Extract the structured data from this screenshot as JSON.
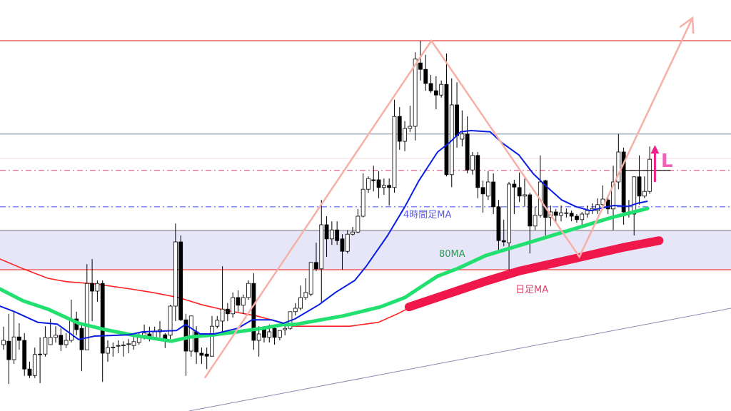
{
  "chart_data": {
    "type": "candlestick",
    "title": "",
    "xlabel": "",
    "ylabel": "",
    "xlim": [
      -0.685,
      139.6
    ],
    "ylim": [
      4,
      100
    ],
    "grid": false,
    "axes_visible": false,
    "colors": {
      "bull_body": "#ffffff",
      "bear_body": "#000000",
      "wick": "#000000",
      "ma_4h": "#0a1ee0",
      "ma_80": "#22e070",
      "ma_red": "#ff2020",
      "ma_daily": "#f0184a",
      "zigzag": "#f5b0a8",
      "trendline": "#8a8ab0",
      "zone_fill": "#e6e6f8",
      "arrow": "#f0208a"
    },
    "candles_ohlc": [
      [
        19.5,
        23.7,
        18.3,
        20.5
      ],
      [
        20.3,
        26.7,
        10.3,
        16
      ],
      [
        16,
        27.2,
        15,
        21.3
      ],
      [
        21.3,
        24.5,
        18.3,
        20.5
      ],
      [
        20.5,
        22.2,
        12.2,
        13.8
      ],
      [
        13.8,
        15.5,
        11.7,
        12.3
      ],
      [
        12.3,
        18.8,
        11.7,
        17.2
      ],
      [
        17.3,
        21.2,
        10.5,
        17.2
      ],
      [
        17.3,
        23.8,
        16.7,
        21.2
      ],
      [
        19.5,
        25.5,
        19.5,
        21.2
      ],
      [
        21.2,
        23.8,
        20,
        21.7
      ],
      [
        21.7,
        23.3,
        18,
        19.5
      ],
      [
        19.5,
        22.2,
        18.7,
        20.5
      ],
      [
        20.5,
        30,
        20,
        25.3
      ],
      [
        25.5,
        27.2,
        21.7,
        23
      ],
      [
        23.3,
        24.5,
        13.3,
        18.3
      ],
      [
        18.3,
        38.3,
        18.3,
        33.8
      ],
      [
        33.8,
        39.5,
        25,
        32
      ],
      [
        32,
        34.5,
        29.5,
        33.8
      ],
      [
        33.8,
        34.5,
        10.8,
        17.5
      ],
      [
        17.5,
        20.5,
        15.5,
        18.8
      ],
      [
        18.8,
        20,
        16.7,
        18.9
      ],
      [
        19.2,
        20.5,
        17.5,
        19.3
      ],
      [
        19.3,
        20.3,
        16.7,
        19.4
      ],
      [
        19.6,
        20.8,
        17.5,
        19.7
      ],
      [
        19.3,
        21.7,
        18.3,
        20.2
      ],
      [
        20,
        22.2,
        19.5,
        21.2
      ],
      [
        21.2,
        24.2,
        20.7,
        22.2
      ],
      [
        22,
        23.7,
        20.3,
        21.2
      ],
      [
        21.2,
        23.7,
        20.7,
        22.5
      ],
      [
        22.5,
        25,
        21.2,
        23
      ],
      [
        21.8,
        22.2,
        18.7,
        20.5
      ],
      [
        21.7,
        28.8,
        20.8,
        28.5
      ],
      [
        28.5,
        47.8,
        25,
        43.5
      ],
      [
        43.5,
        45,
        25,
        25.3
      ],
      [
        25.3,
        26.7,
        12.2,
        18
      ],
      [
        18,
        26.2,
        16.7,
        26.2
      ],
      [
        22.5,
        23.8,
        15,
        17.8
      ],
      [
        17.5,
        18.8,
        15,
        17
      ],
      [
        17.3,
        18.8,
        13.8,
        16.8
      ],
      [
        16.8,
        26.2,
        16.7,
        23.8
      ],
      [
        23.8,
        26.2,
        23.3,
        25.2
      ],
      [
        25,
        37.8,
        22.2,
        27.8
      ],
      [
        27.8,
        29.2,
        25,
        26.7
      ],
      [
        26.7,
        31.7,
        25.8,
        30.5
      ],
      [
        30.5,
        32.2,
        27.2,
        28.7
      ],
      [
        28.7,
        31.2,
        26.7,
        30.5
      ],
      [
        30.5,
        34.5,
        30,
        33.8
      ],
      [
        33.8,
        36.2,
        18.3,
        20.5
      ],
      [
        20.5,
        23.8,
        16.7,
        22
      ],
      [
        23.3,
        23.8,
        20,
        21.2
      ],
      [
        21.2,
        24.2,
        20,
        22.5
      ],
      [
        23.3,
        24.2,
        19.5,
        21.2
      ],
      [
        21.2,
        22.8,
        20.5,
        22.8
      ],
      [
        23,
        24.2,
        21.7,
        23.3
      ],
      [
        23.3,
        27.2,
        23,
        27.2
      ],
      [
        27.2,
        29.2,
        26.3,
        28
      ],
      [
        28,
        33.3,
        27.5,
        30.5
      ],
      [
        30.5,
        35,
        30,
        31.7
      ],
      [
        31.3,
        38.7,
        30.8,
        38.7
      ],
      [
        38.7,
        43.3,
        36.7,
        37.2
      ],
      [
        37.2,
        53.3,
        29.5,
        47.5
      ],
      [
        47.5,
        49.5,
        40,
        44.2
      ],
      [
        44.2,
        48.3,
        42.8,
        46.3
      ],
      [
        46.3,
        48.3,
        42.8,
        43.8
      ],
      [
        44.2,
        45.3,
        37,
        41.3
      ],
      [
        41.3,
        46.2,
        40.8,
        45.3
      ],
      [
        45.3,
        47,
        45,
        45.8
      ],
      [
        45.8,
        51.2,
        45.5,
        49.5
      ],
      [
        49.5,
        59.5,
        49.2,
        55.8
      ],
      [
        55.8,
        58.8,
        55,
        58.3
      ],
      [
        58,
        61.3,
        55.3,
        57.8
      ],
      [
        58,
        60,
        53.7,
        56.2
      ],
      [
        56.2,
        58.3,
        54.5,
        56.7
      ],
      [
        56.7,
        58.3,
        52,
        56.2
      ],
      [
        56.2,
        76.7,
        55,
        72.8
      ],
      [
        72.8,
        75,
        65,
        67
      ],
      [
        67,
        71.7,
        64.7,
        70
      ],
      [
        70,
        75.3,
        69.2,
        70.5
      ],
      [
        70.5,
        87.8,
        67.2,
        86.2
      ],
      [
        85.3,
        90.5,
        81.2,
        83.8
      ],
      [
        83.8,
        87.2,
        78.8,
        80.5
      ],
      [
        80.5,
        82.5,
        78.3,
        78.8
      ],
      [
        78.8,
        82.2,
        74.5,
        77.8
      ],
      [
        77.8,
        81.2,
        77.2,
        80.3
      ],
      [
        80.3,
        87.5,
        58.8,
        59.2
      ],
      [
        59.2,
        81.7,
        56.3,
        75.5
      ],
      [
        75.5,
        80.8,
        65.5,
        68.3
      ],
      [
        67.5,
        74.2,
        65.8,
        68.7
      ],
      [
        68.7,
        72.8,
        59.5,
        60.3
      ],
      [
        60.3,
        64.5,
        59.2,
        63.7
      ],
      [
        63.7,
        64.5,
        53.7,
        56.2
      ],
      [
        56.2,
        57.8,
        50.3,
        54.7
      ],
      [
        54.2,
        60,
        53.3,
        57.5
      ],
      [
        57.5,
        59.5,
        50,
        51.7
      ],
      [
        51.7,
        53.3,
        41.2,
        43.8
      ],
      [
        43.8,
        48.7,
        42.5,
        43.5
      ],
      [
        43.3,
        57.5,
        37,
        57
      ],
      [
        57,
        58,
        50,
        56.3
      ],
      [
        56.2,
        59.7,
        52.8,
        54.2
      ],
      [
        54.2,
        58.3,
        51.7,
        54.5
      ],
      [
        54.5,
        55,
        40.8,
        47.2
      ],
      [
        47.2,
        51.7,
        46.2,
        49.7
      ],
      [
        49.7,
        63.7,
        49.2,
        57.5
      ],
      [
        57.8,
        58,
        45,
        49.2
      ],
      [
        49.2,
        52,
        47.2,
        50.5
      ],
      [
        50.5,
        51.2,
        47.8,
        49.7
      ],
      [
        49.7,
        52,
        48.3,
        50.3
      ],
      [
        50.2,
        51.3,
        49.2,
        50.3
      ],
      [
        50.2,
        50.8,
        48.3,
        49.5
      ],
      [
        49.5,
        50,
        48,
        48.7
      ],
      [
        48.7,
        50.5,
        47.5,
        50
      ],
      [
        50,
        52,
        49.2,
        50.8
      ],
      [
        50.8,
        52.5,
        50,
        51.3
      ],
      [
        50.8,
        53.7,
        50,
        52.2
      ],
      [
        52.2,
        56.7,
        51.3,
        53.5
      ],
      [
        53.3,
        54.5,
        50,
        51.2
      ],
      [
        51.2,
        61.3,
        46.2,
        57.5
      ],
      [
        57.5,
        68.7,
        55.8,
        64.5
      ],
      [
        64.5,
        65.5,
        47.5,
        50.5
      ],
      [
        50.3,
        53.3,
        49.2,
        50.5
      ],
      [
        50,
        58.8,
        45,
        58.7
      ],
      [
        58.7,
        63.7,
        52.2,
        54.2
      ],
      [
        54.2,
        58.8,
        53.7,
        55.3
      ],
      [
        55.3,
        65.8,
        54.7,
        62.8
      ]
    ],
    "horizontal_levels": [
      {
        "value": 90.5,
        "style": "solid",
        "color": "#e84040"
      },
      {
        "value": 68.7,
        "style": "solid",
        "color": "#8a9aa8"
      },
      {
        "value": 63,
        "style": "solid",
        "color": "#f3e0e0"
      },
      {
        "value": 60.2,
        "style": "dashdot",
        "color": "#e0508a"
      },
      {
        "value": 51.7,
        "style": "dashdot",
        "color": "#5060ff"
      }
    ],
    "zone": {
      "top": 46.2,
      "bottom": 37,
      "top_color": "#a0a0a8",
      "bottom_color": "#f04040"
    },
    "moving_averages": [
      {
        "name": "4時間足MA",
        "color": "#0a1ee0",
        "points": [
          [
            -0.7,
            28.5
          ],
          [
            2.1,
            27.2
          ],
          [
            6.6,
            24.7
          ],
          [
            10.3,
            24.3
          ],
          [
            14.4,
            20.7
          ],
          [
            17.5,
            21.5
          ],
          [
            24,
            21.8
          ],
          [
            26.7,
            22.5
          ],
          [
            33.2,
            22.8
          ],
          [
            34.9,
            24.2
          ],
          [
            37.7,
            22
          ],
          [
            40.4,
            22
          ],
          [
            44.9,
            23.3
          ],
          [
            47.7,
            25.3
          ],
          [
            51.4,
            25.3
          ],
          [
            53.7,
            24.5
          ],
          [
            55.9,
            25.5
          ],
          [
            60.5,
            28.8
          ],
          [
            63.7,
            31.7
          ],
          [
            67.4,
            34.5
          ],
          [
            69.6,
            37.8
          ],
          [
            73.7,
            45
          ],
          [
            77,
            51.7
          ],
          [
            79.7,
            57.8
          ],
          [
            83.3,
            64.5
          ],
          [
            85.6,
            66.7
          ],
          [
            87.7,
            69.2
          ],
          [
            89.7,
            69.5
          ],
          [
            93.4,
            69.2
          ],
          [
            95.6,
            66.7
          ],
          [
            98.9,
            63.8
          ],
          [
            101.6,
            59.5
          ],
          [
            104.4,
            56.2
          ],
          [
            107.1,
            53.3
          ],
          [
            109.9,
            51.7
          ],
          [
            112.6,
            50.8
          ],
          [
            114.4,
            51.3
          ],
          [
            117.1,
            52
          ],
          [
            119.9,
            51.8
          ],
          [
            121.6,
            52.5
          ],
          [
            123.6,
            53
          ]
        ]
      },
      {
        "name": "80MA",
        "color": "#22e070",
        "points": [
          [
            -0.7,
            32.5
          ],
          [
            3.8,
            29.7
          ],
          [
            8.5,
            27.8
          ],
          [
            14.4,
            24.5
          ],
          [
            19.5,
            23
          ],
          [
            24.9,
            21.7
          ],
          [
            32.2,
            20.3
          ],
          [
            35.9,
            21.3
          ],
          [
            40.4,
            21.8
          ],
          [
            44.9,
            22.5
          ],
          [
            49.6,
            23.3
          ],
          [
            53.7,
            24.2
          ],
          [
            55.9,
            24.2
          ],
          [
            65.1,
            26.2
          ],
          [
            72.3,
            28.3
          ],
          [
            77,
            30.5
          ],
          [
            80.5,
            33.3
          ],
          [
            83.3,
            35.5
          ],
          [
            87,
            37.2
          ],
          [
            92.5,
            40.3
          ],
          [
            100.7,
            43.3
          ],
          [
            109.9,
            46.7
          ],
          [
            116.7,
            49.2
          ],
          [
            123.6,
            51.3
          ]
        ]
      },
      {
        "name": "",
        "color": "#ff2020",
        "points": [
          [
            -0.7,
            39.5
          ],
          [
            3.8,
            37.2
          ],
          [
            8.5,
            35
          ],
          [
            12.1,
            34.2
          ],
          [
            17.5,
            33.7
          ],
          [
            24.4,
            32.5
          ],
          [
            28.5,
            31.7
          ],
          [
            33.6,
            30.5
          ],
          [
            38.1,
            28.8
          ],
          [
            42.7,
            27.5
          ],
          [
            48.6,
            26.2
          ],
          [
            53.7,
            24.5
          ],
          [
            55.1,
            23.8
          ],
          [
            66.4,
            23.8
          ],
          [
            71.9,
            24.7
          ],
          [
            75.6,
            26.7
          ],
          [
            77.4,
            27.8
          ]
        ]
      },
      {
        "name": "日足MA",
        "color": "#f0184a",
        "points": [
          [
            77.8,
            28.3
          ],
          [
            92.5,
            34.3
          ],
          [
            99,
            36.7
          ],
          [
            109.9,
            39.7
          ],
          [
            118.9,
            42.2
          ],
          [
            125.8,
            43.8
          ]
        ]
      }
    ],
    "annotations": {
      "zigzag": [
        [
          38.6,
          11.7
        ],
        [
          82.1,
          90.5
        ],
        [
          110.5,
          40
        ],
        [
          132.2,
          95.8
        ]
      ],
      "trendline": [
        [
          35.6,
          4
        ],
        [
          139.6,
          28
        ]
      ],
      "current_level": {
        "value": 60.2,
        "from": 118.7,
        "to": 128
      },
      "arrow": {
        "index": 125,
        "from": 57.5,
        "to": 65.8
      },
      "signal_label": "L"
    }
  }
}
